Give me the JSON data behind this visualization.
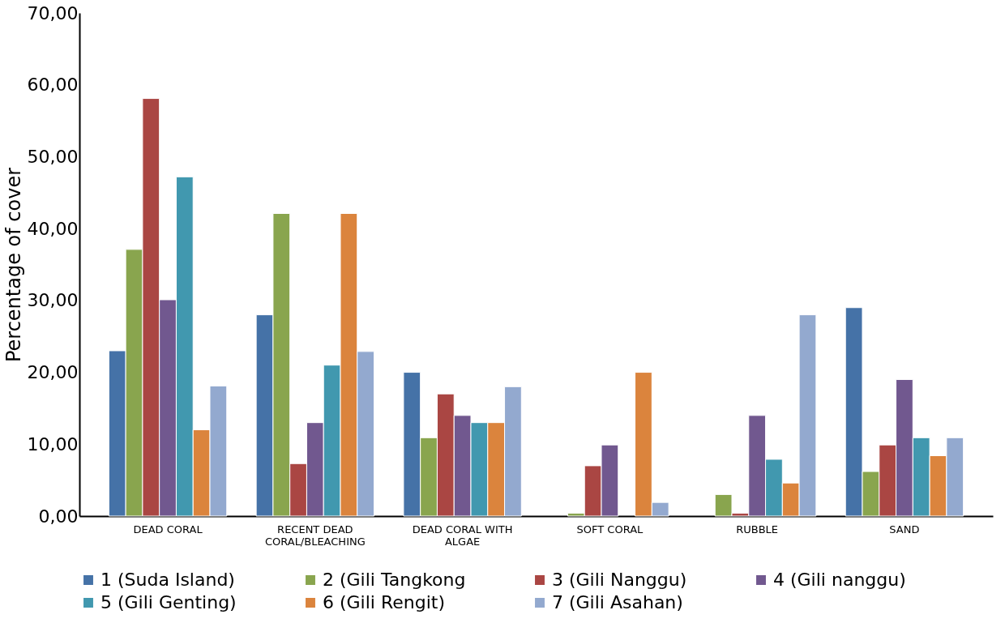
{
  "chart_data": {
    "type": "bar",
    "ylabel": "Percentage of cover",
    "categories": [
      "DEAD CORAL",
      "RECENT DEAD CORAL/BLEACHING",
      "DEAD CORAL WITH ALGAE",
      "SOFT CORAL",
      "RUBBLE",
      "SAND"
    ],
    "series": [
      {
        "name": "1 (Suda Island)",
        "color": "#4572a7",
        "values": [
          23.0,
          28.0,
          20.0,
          null,
          null,
          29.0
        ]
      },
      {
        "name": "2 (Gili Tangkong",
        "color": "#89a54e",
        "values": [
          37.1,
          42.1,
          10.9,
          0.4,
          3.0,
          6.2
        ]
      },
      {
        "name": "3 (Gili Nanggu)",
        "color": "#aa4643",
        "values": [
          58.1,
          7.3,
          17.0,
          7.0,
          0.4,
          9.9
        ]
      },
      {
        "name": "4 (Gili nanggu)",
        "color": "#71588f",
        "values": [
          30.1,
          13.0,
          14.0,
          9.9,
          14.0,
          19.0
        ]
      },
      {
        "name": "5 (Gili Genting)",
        "color": "#4198af",
        "values": [
          47.2,
          21.0,
          13.0,
          null,
          7.9,
          10.9
        ]
      },
      {
        "name": "6 (Gili Rengit)",
        "color": "#db843d",
        "values": [
          12.0,
          42.1,
          13.0,
          20.0,
          4.6,
          8.4
        ]
      },
      {
        "name": "7 (Gili Asahan)",
        "color": "#93a9cf",
        "values": [
          18.1,
          22.9,
          18.0,
          1.9,
          28.0,
          10.9
        ]
      }
    ],
    "ylim": [
      0,
      70
    ],
    "yticks": [
      {
        "value": 0,
        "label": "0,00"
      },
      {
        "value": 10,
        "label": "10,00"
      },
      {
        "value": 20,
        "label": "20,00"
      },
      {
        "value": 30,
        "label": "30,00"
      },
      {
        "value": 40,
        "label": "40,00"
      },
      {
        "value": 50,
        "label": "50,00"
      },
      {
        "value": 60,
        "label": "60,00"
      },
      {
        "value": 70,
        "label": "70,00"
      }
    ],
    "grid": false,
    "legend": "bottom"
  }
}
